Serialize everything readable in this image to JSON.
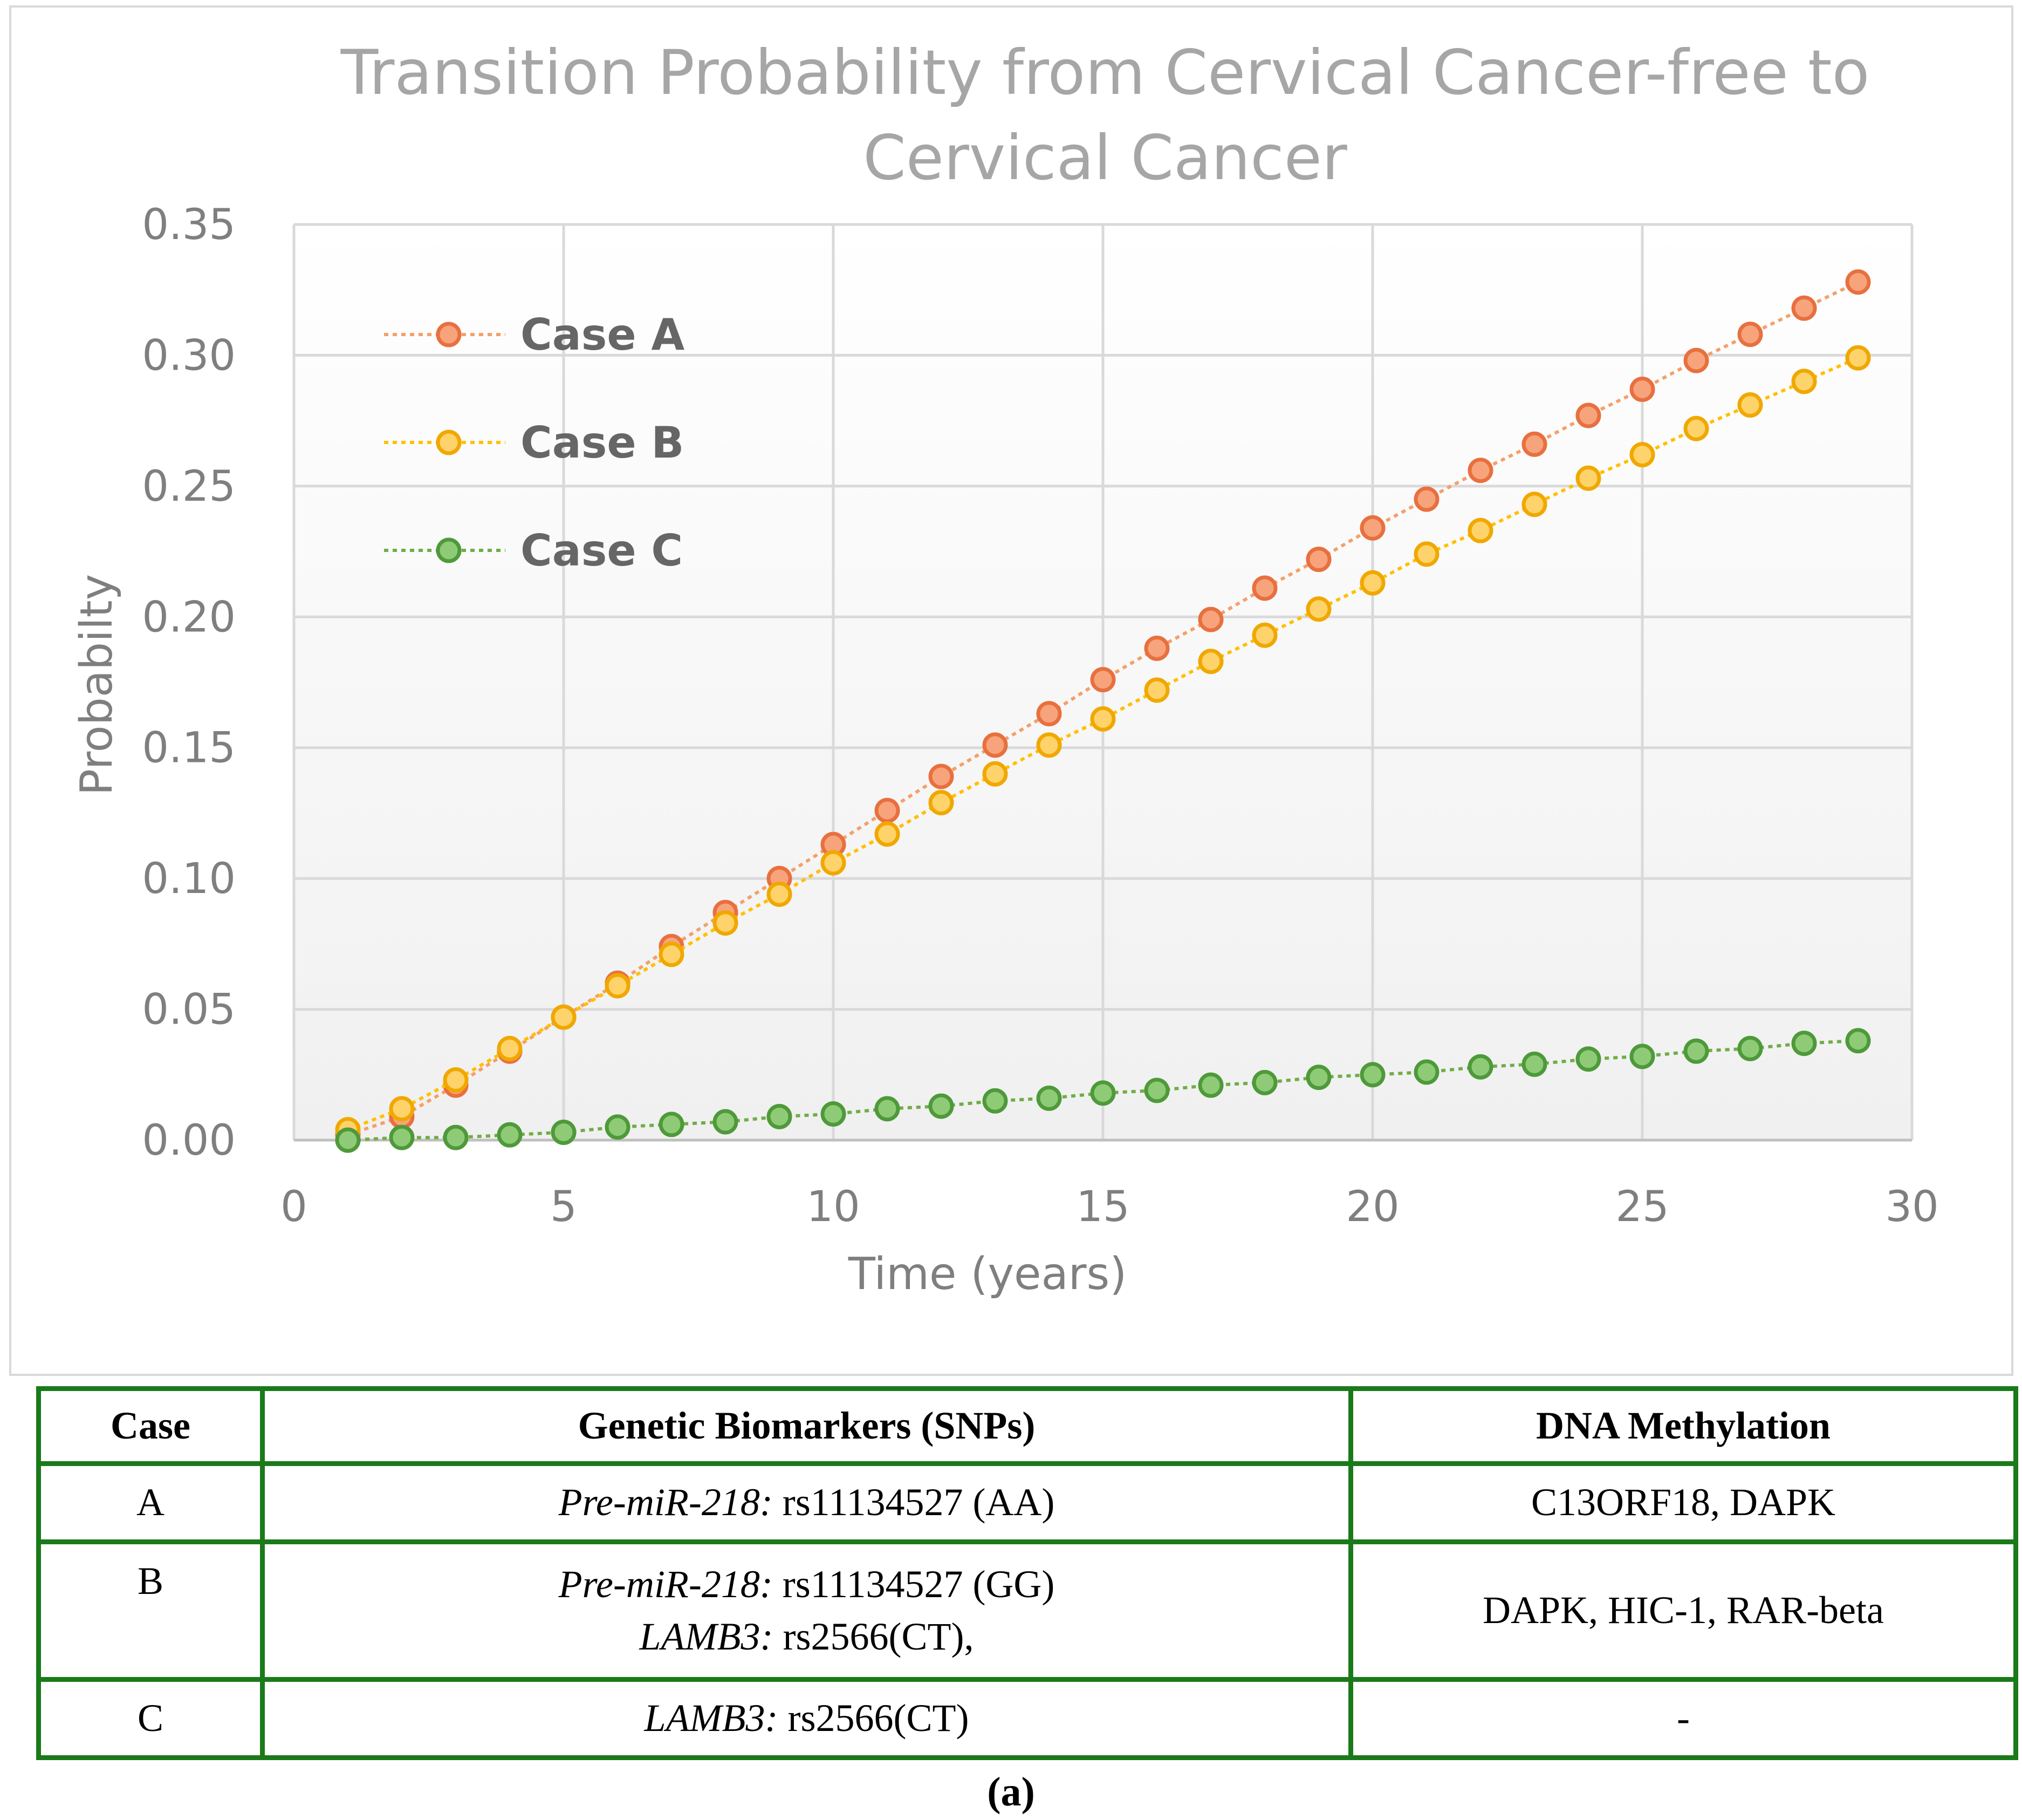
{
  "chart_data": {
    "type": "line",
    "title_lines": [
      "Transition Probability from Cervical Cancer-free to",
      "Cervical Cancer"
    ],
    "xlabel": "Time (years)",
    "ylabel": "Probabilty",
    "xlim": [
      0,
      30
    ],
    "ylim": [
      0,
      0.35
    ],
    "xticks": [
      "0",
      "5",
      "10",
      "15",
      "20",
      "25",
      "30"
    ],
    "yticks": [
      "0.00",
      "0.05",
      "0.10",
      "0.15",
      "0.20",
      "0.25",
      "0.30",
      "0.35"
    ],
    "xtick_values": [
      0,
      5,
      10,
      15,
      20,
      25,
      30
    ],
    "ytick_values": [
      0,
      0.05,
      0.1,
      0.15,
      0.2,
      0.25,
      0.3,
      0.35
    ],
    "grid": true,
    "legend_position": "top-left",
    "x": [
      1,
      2,
      3,
      4,
      5,
      6,
      7,
      8,
      9,
      10,
      11,
      12,
      13,
      14,
      15,
      16,
      17,
      18,
      19,
      20,
      21,
      22,
      23,
      24,
      25,
      26,
      27,
      28,
      29
    ],
    "series": [
      {
        "name": "Case A",
        "line_color": "#f4a06a",
        "fill_color": "#f7a47c",
        "edge_color": "#e8703f",
        "values": [
          0.002,
          0.009,
          0.021,
          0.034,
          0.047,
          0.06,
          0.074,
          0.087,
          0.1,
          0.113,
          0.126,
          0.139,
          0.151,
          0.163,
          0.176,
          0.188,
          0.199,
          0.211,
          0.222,
          0.234,
          0.245,
          0.256,
          0.266,
          0.277,
          0.287,
          0.298,
          0.308,
          0.318,
          0.328
        ]
      },
      {
        "name": "Case B",
        "line_color": "#ffc000",
        "fill_color": "#ffd36b",
        "edge_color": "#f0a800",
        "values": [
          0.004,
          0.012,
          0.023,
          0.035,
          0.047,
          0.059,
          0.071,
          0.083,
          0.094,
          0.106,
          0.117,
          0.129,
          0.14,
          0.151,
          0.161,
          0.172,
          0.183,
          0.193,
          0.203,
          0.213,
          0.224,
          0.233,
          0.243,
          0.253,
          0.262,
          0.272,
          0.281,
          0.29,
          0.299
        ]
      },
      {
        "name": "Case C",
        "line_color": "#70ad47",
        "fill_color": "#8fcb76",
        "edge_color": "#4e9a3a",
        "values": [
          0.0,
          0.001,
          0.001,
          0.002,
          0.003,
          0.005,
          0.006,
          0.007,
          0.009,
          0.01,
          0.012,
          0.013,
          0.015,
          0.016,
          0.018,
          0.019,
          0.021,
          0.022,
          0.024,
          0.025,
          0.026,
          0.028,
          0.029,
          0.031,
          0.032,
          0.034,
          0.035,
          0.037,
          0.038
        ]
      }
    ]
  },
  "table": {
    "headers": [
      "Case",
      "Genetic Biomarkers (SNPs)",
      "DNA Methylation"
    ],
    "rows": [
      {
        "case": "A",
        "snp_lines": [
          {
            "gene": "Pre-miR-218:",
            "variant": " rs11134527 (AA)"
          }
        ],
        "methylation": "C13ORF18, DAPK"
      },
      {
        "case": "B",
        "snp_lines": [
          {
            "gene": "Pre-miR-218:",
            "variant": " rs11134527 (GG)"
          },
          {
            "gene": "LAMB3:",
            "variant": " rs2566(CT),"
          }
        ],
        "methylation": "DAPK, HIC-1, RAR-beta"
      },
      {
        "case": "C",
        "snp_lines": [
          {
            "gene": "LAMB3:",
            "variant": " rs2566(CT)"
          }
        ],
        "methylation": "-"
      }
    ]
  },
  "caption": "(a)"
}
